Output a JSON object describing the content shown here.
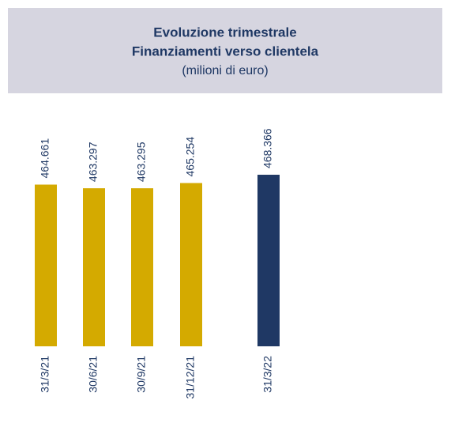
{
  "chart_data": {
    "type": "bar",
    "title": "Evoluzione trimestrale",
    "subtitle": "Finanziamenti verso clientela",
    "unit": "(milioni di euro)",
    "categories": [
      "31/3/21",
      "30/6/21",
      "30/9/21",
      "31/12/21",
      "31/3/22"
    ],
    "values": [
      464661,
      463297,
      463295,
      465254,
      468366
    ],
    "value_labels": [
      "464.661",
      "463.297",
      "463.295",
      "465.254",
      "468.366"
    ],
    "colors": [
      "#d4aa00",
      "#d4aa00",
      "#d4aa00",
      "#d4aa00",
      "#1f3864"
    ],
    "ylim": [
      404000,
      470000
    ]
  }
}
